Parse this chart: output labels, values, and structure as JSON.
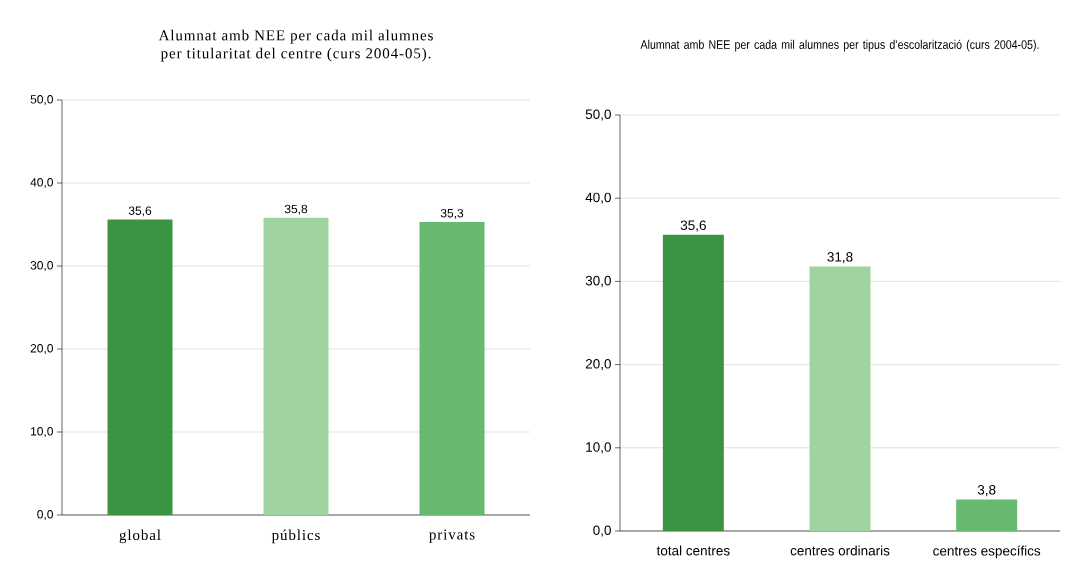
{
  "chart_data": [
    {
      "type": "bar",
      "title": "Alumnat amb NEE per cada mil alumnes per titularitat del centre (curs 2004-05).",
      "categories": [
        "global",
        "públics",
        "privats"
      ],
      "values": [
        35.6,
        35.8,
        35.3
      ],
      "colors": [
        "#3a9442",
        "#9fd3a0",
        "#66b96e"
      ],
      "value_labels": [
        "35,6",
        "35,8",
        "35,3"
      ],
      "ylim": [
        0,
        50
      ],
      "yticks": [
        {
          "value": 0,
          "label": "0,0"
        },
        {
          "value": 10,
          "label": "10,0"
        },
        {
          "value": 20,
          "label": "20,0"
        },
        {
          "value": 30,
          "label": "30,0"
        },
        {
          "value": 40,
          "label": "40,0"
        },
        {
          "value": 50,
          "label": "50,0"
        }
      ],
      "grid": "y"
    },
    {
      "type": "bar",
      "title": "Alumnat amb NEE per cada mil alumnes per tipus d'escolarització (curs 2004-05).",
      "categories": [
        "total centres",
        "centres ordinaris",
        "centres específics"
      ],
      "values": [
        35.6,
        31.8,
        3.8
      ],
      "colors": [
        "#3a9442",
        "#9fd3a0",
        "#66b96e"
      ],
      "value_labels": [
        "35,6",
        "31,8",
        "3,8"
      ],
      "ylim": [
        0,
        50
      ],
      "yticks": [
        {
          "value": 0,
          "label": "0,0"
        },
        {
          "value": 10,
          "label": "10,0"
        },
        {
          "value": 20,
          "label": "20,0"
        },
        {
          "value": 30,
          "label": "30,0"
        },
        {
          "value": 40,
          "label": "40,0"
        },
        {
          "value": 50,
          "label": "50,0"
        }
      ],
      "grid": "y"
    }
  ]
}
